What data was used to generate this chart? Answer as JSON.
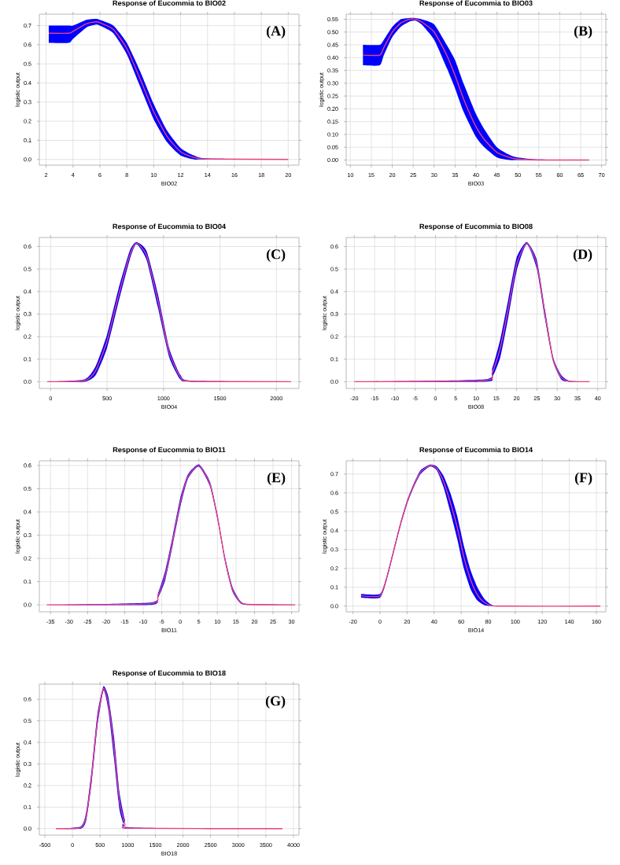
{
  "chart_data": [
    {
      "type": "line",
      "title": "Response of Eucommia to BIO02",
      "xlabel": "BIO02",
      "ylabel": "logistic output",
      "annotations": [
        "(A)"
      ],
      "grid": true,
      "xlim": [
        1.5,
        20.8
      ],
      "ylim": [
        -0.03,
        0.76
      ],
      "xticks": [
        2,
        4,
        6,
        8,
        10,
        12,
        14,
        16,
        18,
        20
      ],
      "yticks": [
        {
          "value": 0,
          "label": "0.0"
        },
        {
          "value": 0.1,
          "label": "0.1"
        },
        {
          "value": 0.2,
          "label": "0.2"
        },
        {
          "value": 0.3,
          "label": "0.3"
        },
        {
          "value": 0.4,
          "label": "0.4"
        },
        {
          "value": 0.5,
          "label": "0.5"
        },
        {
          "value": 0.6,
          "label": "0.6"
        },
        {
          "value": 0.7,
          "label": "0.7"
        }
      ],
      "x": [
        2.2,
        3.7,
        4,
        5,
        5.7,
        6,
        7,
        8,
        9,
        10,
        11,
        12,
        13,
        14,
        20
      ],
      "series": [
        {
          "color": "#e8417f",
          "values": [
            0.66,
            0.66,
            0.67,
            0.71,
            0.72,
            0.715,
            0.68,
            0.58,
            0.42,
            0.25,
            0.12,
            0.04,
            0.01,
            0.002,
            0
          ],
          "lower": [
            0.61,
            0.61,
            0.63,
            0.69,
            0.705,
            0.7,
            0.66,
            0.55,
            0.38,
            0.21,
            0.09,
            0.02,
            0,
            0,
            0
          ],
          "upper": [
            0.7,
            0.7,
            0.7,
            0.73,
            0.735,
            0.73,
            0.7,
            0.61,
            0.46,
            0.29,
            0.15,
            0.06,
            0.02,
            0.005,
            0
          ]
        }
      ]
    },
    {
      "type": "line",
      "title": "Response of Eucommia to BIO03",
      "xlabel": "BIO03",
      "ylabel": "logistic output",
      "annotations": [
        "(B)"
      ],
      "grid": true,
      "xlim": [
        9,
        71
      ],
      "ylim": [
        -0.02,
        0.57
      ],
      "xticks": [
        10,
        15,
        20,
        25,
        30,
        35,
        40,
        45,
        50,
        55,
        60,
        65,
        70
      ],
      "yticks": [
        {
          "value": 0,
          "label": "0.00"
        },
        {
          "value": 0.05,
          "label": "0.05"
        },
        {
          "value": 0.1,
          "label": "0.10"
        },
        {
          "value": 0.15,
          "label": "0.15"
        },
        {
          "value": 0.2,
          "label": "0.20"
        },
        {
          "value": 0.25,
          "label": "0.25"
        },
        {
          "value": 0.3,
          "label": "0.30"
        },
        {
          "value": 0.35,
          "label": "0.35"
        },
        {
          "value": 0.4,
          "label": "0.40"
        },
        {
          "value": 0.45,
          "label": "0.45"
        },
        {
          "value": 0.5,
          "label": "0.50"
        },
        {
          "value": 0.55,
          "label": "0.55"
        }
      ],
      "x": [
        13,
        17,
        18,
        20,
        22,
        24,
        25.5,
        27,
        30,
        33,
        35,
        37,
        40,
        42,
        45,
        48,
        50,
        55,
        67
      ],
      "series": [
        {
          "color": "#e8417f",
          "values": [
            0.41,
            0.41,
            0.44,
            0.5,
            0.535,
            0.55,
            0.55,
            0.54,
            0.5,
            0.41,
            0.33,
            0.24,
            0.13,
            0.08,
            0.03,
            0.01,
            0.004,
            0,
            0
          ],
          "lower": [
            0.37,
            0.37,
            0.41,
            0.48,
            0.52,
            0.54,
            0.545,
            0.53,
            0.47,
            0.36,
            0.28,
            0.19,
            0.09,
            0.05,
            0.01,
            0,
            0,
            0,
            0
          ],
          "upper": [
            0.45,
            0.45,
            0.47,
            0.52,
            0.55,
            0.555,
            0.555,
            0.55,
            0.53,
            0.45,
            0.39,
            0.3,
            0.18,
            0.12,
            0.05,
            0.02,
            0.01,
            0.002,
            0
          ]
        }
      ]
    },
    {
      "type": "line",
      "title": "Response of Eucommia to BIO04",
      "xlabel": "BIO04",
      "ylabel": "logistic output",
      "annotations": [
        "(C)"
      ],
      "grid": true,
      "xlim": [
        -100,
        2200
      ],
      "ylim": [
        -0.03,
        0.64
      ],
      "xticks": [
        0,
        500,
        1000,
        1500,
        2000
      ],
      "yticks": [
        {
          "value": 0,
          "label": "0.0"
        },
        {
          "value": 0.1,
          "label": "0.1"
        },
        {
          "value": 0.2,
          "label": "0.2"
        },
        {
          "value": 0.3,
          "label": "0.3"
        },
        {
          "value": 0.4,
          "label": "0.4"
        },
        {
          "value": 0.5,
          "label": "0.5"
        },
        {
          "value": 0.6,
          "label": "0.6"
        }
      ],
      "x": [
        -30,
        300,
        400,
        500,
        600,
        700,
        760,
        850,
        950,
        1050,
        1150,
        1250,
        2130
      ],
      "series": [
        {
          "color": "#e8417f",
          "values": [
            0,
            0.005,
            0.05,
            0.18,
            0.38,
            0.56,
            0.615,
            0.56,
            0.36,
            0.13,
            0.02,
            0.002,
            0
          ],
          "lower": [
            0,
            0,
            0.03,
            0.15,
            0.35,
            0.54,
            0.61,
            0.54,
            0.33,
            0.11,
            0.01,
            0,
            0
          ],
          "upper": [
            0,
            0.01,
            0.07,
            0.21,
            0.41,
            0.58,
            0.62,
            0.58,
            0.39,
            0.15,
            0.03,
            0.004,
            0
          ]
        }
      ]
    },
    {
      "type": "line",
      "title": "Response of Eucommia to BIO08",
      "xlabel": "BIO08",
      "ylabel": "logistic output",
      "annotations": [
        "(D)"
      ],
      "grid": true,
      "xlim": [
        -22,
        42
      ],
      "ylim": [
        -0.03,
        0.64
      ],
      "xticks": [
        -20,
        -15,
        -10,
        -5,
        0,
        5,
        10,
        15,
        20,
        25,
        30,
        35,
        40
      ],
      "yticks": [
        {
          "value": 0,
          "label": "0.0"
        },
        {
          "value": 0.1,
          "label": "0.1"
        },
        {
          "value": 0.2,
          "label": "0.2"
        },
        {
          "value": 0.3,
          "label": "0.3"
        },
        {
          "value": 0.4,
          "label": "0.4"
        },
        {
          "value": 0.5,
          "label": "0.5"
        },
        {
          "value": 0.6,
          "label": "0.6"
        }
      ],
      "x": [
        -20,
        12,
        14,
        16,
        18,
        20,
        22.5,
        25,
        27,
        29,
        31,
        33,
        38
      ],
      "series": [
        {
          "color": "#e8417f",
          "values": [
            0,
            0.005,
            0.04,
            0.15,
            0.33,
            0.52,
            0.615,
            0.52,
            0.3,
            0.1,
            0.02,
            0.002,
            0
          ],
          "lower": [
            0,
            0,
            0.02,
            0.11,
            0.29,
            0.49,
            0.61,
            0.5,
            0.28,
            0.09,
            0.01,
            0,
            0
          ],
          "upper": [
            0,
            0.01,
            0.06,
            0.19,
            0.37,
            0.55,
            0.62,
            0.54,
            0.32,
            0.11,
            0.03,
            0.004,
            0
          ]
        }
      ]
    },
    {
      "type": "line",
      "title": "Response of Eucommia to BIO11",
      "xlabel": "BIO11",
      "ylabel": "logistic output",
      "annotations": [
        "(E)"
      ],
      "grid": true,
      "xlim": [
        -38,
        32
      ],
      "ylim": [
        -0.03,
        0.62
      ],
      "xticks": [
        -35,
        -30,
        -25,
        -20,
        -15,
        -10,
        -5,
        0,
        5,
        10,
        15,
        20,
        25,
        30
      ],
      "yticks": [
        {
          "value": 0,
          "label": "0.0"
        },
        {
          "value": 0.1,
          "label": "0.1"
        },
        {
          "value": 0.2,
          "label": "0.2"
        },
        {
          "value": 0.3,
          "label": "0.3"
        },
        {
          "value": 0.4,
          "label": "0.4"
        },
        {
          "value": 0.5,
          "label": "0.5"
        },
        {
          "value": 0.6,
          "label": "0.6"
        }
      ],
      "x": [
        -36,
        -8,
        -6,
        -4,
        -2,
        0,
        2,
        5,
        8,
        10,
        12,
        14,
        16,
        18,
        31
      ],
      "series": [
        {
          "color": "#e8417f",
          "values": [
            0,
            0.005,
            0.04,
            0.13,
            0.28,
            0.44,
            0.55,
            0.6,
            0.52,
            0.38,
            0.2,
            0.07,
            0.015,
            0.002,
            0
          ],
          "lower": [
            0,
            0,
            0.03,
            0.11,
            0.26,
            0.42,
            0.54,
            0.595,
            0.51,
            0.37,
            0.19,
            0.06,
            0.01,
            0,
            0
          ],
          "upper": [
            0,
            0.01,
            0.05,
            0.15,
            0.3,
            0.46,
            0.56,
            0.605,
            0.53,
            0.39,
            0.21,
            0.08,
            0.02,
            0.004,
            0
          ]
        }
      ]
    },
    {
      "type": "line",
      "title": "Response of Eucommia to BIO14",
      "xlabel": "BIO14",
      "ylabel": "logistic output",
      "annotations": [
        "(F)"
      ],
      "grid": true,
      "xlim": [
        -25,
        167
      ],
      "ylim": [
        -0.03,
        0.77
      ],
      "xticks": [
        -20,
        0,
        20,
        40,
        60,
        80,
        100,
        120,
        140,
        160
      ],
      "yticks": [
        {
          "value": 0,
          "label": "0.0"
        },
        {
          "value": 0.1,
          "label": "0.1"
        },
        {
          "value": 0.2,
          "label": "0.2"
        },
        {
          "value": 0.3,
          "label": "0.3"
        },
        {
          "value": 0.4,
          "label": "0.4"
        },
        {
          "value": 0.5,
          "label": "0.5"
        },
        {
          "value": 0.6,
          "label": "0.6"
        },
        {
          "value": 0.7,
          "label": "0.7"
        }
      ],
      "x": [
        -14,
        0,
        5,
        10,
        15,
        20,
        25,
        30,
        37,
        42,
        47,
        52,
        57,
        62,
        67,
        72,
        77,
        82,
        90,
        163
      ],
      "series": [
        {
          "color": "#e8417f",
          "values": [
            0.055,
            0.055,
            0.15,
            0.29,
            0.43,
            0.55,
            0.64,
            0.71,
            0.745,
            0.73,
            0.66,
            0.55,
            0.42,
            0.26,
            0.14,
            0.06,
            0.02,
            0.004,
            0,
            0
          ],
          "lower": [
            0.045,
            0.045,
            0.14,
            0.28,
            0.42,
            0.54,
            0.63,
            0.7,
            0.74,
            0.72,
            0.63,
            0.5,
            0.36,
            0.2,
            0.09,
            0.03,
            0.005,
            0,
            0,
            0
          ],
          "upper": [
            0.065,
            0.065,
            0.16,
            0.3,
            0.44,
            0.56,
            0.65,
            0.72,
            0.75,
            0.74,
            0.69,
            0.6,
            0.48,
            0.32,
            0.19,
            0.1,
            0.04,
            0.01,
            0.001,
            0
          ]
        }
      ]
    },
    {
      "type": "line",
      "title": "Response of Eucommia to BIO18",
      "xlabel": "BIO18",
      "ylabel": "logistic output",
      "annotations": [
        "(G)"
      ],
      "grid": true,
      "xlim": [
        -600,
        4100
      ],
      "ylim": [
        -0.03,
        0.67
      ],
      "xticks": [
        -500,
        0,
        500,
        1000,
        1500,
        2000,
        2500,
        3000,
        3500,
        4000
      ],
      "yticks": [
        {
          "value": 0,
          "label": "0.0"
        },
        {
          "value": 0.1,
          "label": "0.1"
        },
        {
          "value": 0.2,
          "label": "0.2"
        },
        {
          "value": 0.3,
          "label": "0.3"
        },
        {
          "value": 0.4,
          "label": "0.4"
        },
        {
          "value": 0.5,
          "label": "0.5"
        },
        {
          "value": 0.6,
          "label": "0.6"
        }
      ],
      "x": [
        -300,
        150,
        250,
        350,
        450,
        560,
        650,
        750,
        850,
        950,
        1050,
        3800
      ],
      "series": [
        {
          "color": "#e8417f",
          "values": [
            0,
            0.005,
            0.06,
            0.25,
            0.5,
            0.65,
            0.58,
            0.38,
            0.13,
            0.02,
            0.002,
            0
          ],
          "lower": [
            0,
            0,
            0.04,
            0.22,
            0.47,
            0.64,
            0.55,
            0.33,
            0.09,
            0.005,
            0,
            0
          ],
          "upper": [
            0,
            0.01,
            0.08,
            0.28,
            0.53,
            0.66,
            0.61,
            0.43,
            0.17,
            0.04,
            0.006,
            0
          ]
        }
      ]
    }
  ]
}
